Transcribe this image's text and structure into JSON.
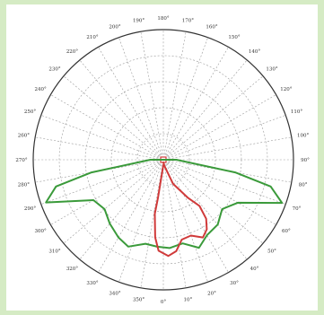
{
  "chart_data": {
    "type": "polar-line",
    "title": "",
    "angle_labels": [
      "0°",
      "10°",
      "20°",
      "30°",
      "40°",
      "50°",
      "60°",
      "70°",
      "80°",
      "90°",
      "100°",
      "110°",
      "120°",
      "130°",
      "140°",
      "150°",
      "160°",
      "170°",
      "180°",
      "190°",
      "200°",
      "210°",
      "220°",
      "230°",
      "240°",
      "250°",
      "260°",
      "270°",
      "280°",
      "290°",
      "300°",
      "310°",
      "320°",
      "330°",
      "340°",
      "350°"
    ],
    "angle_units": "degrees",
    "angle_zero": "bottom",
    "angle_direction": "counter-clockwise",
    "radial_range": [
      0,
      1
    ],
    "radial_rings": [
      0.2,
      0.4,
      0.6,
      0.8,
      1.0
    ],
    "grid": true,
    "series": [
      {
        "color": "#3a9a3a",
        "closed": true,
        "points": [
          {
            "angle": 90,
            "r": 0.1
          },
          {
            "angle": 80,
            "r": 0.56
          },
          {
            "angle": 76,
            "r": 0.85
          },
          {
            "angle": 70,
            "r": 0.97
          },
          {
            "angle": 60,
            "r": 0.66
          },
          {
            "angle": 50,
            "r": 0.59
          },
          {
            "angle": 40,
            "r": 0.65
          },
          {
            "angle": 30,
            "r": 0.67
          },
          {
            "angle": 22,
            "r": 0.73
          },
          {
            "angle": 13,
            "r": 0.66
          },
          {
            "angle": 4,
            "r": 0.68
          },
          {
            "angle": -4,
            "r": 0.67
          },
          {
            "angle": -12,
            "r": 0.66
          },
          {
            "angle": -22,
            "r": 0.72
          },
          {
            "angle": -30,
            "r": 0.69
          },
          {
            "angle": -40,
            "r": 0.64
          },
          {
            "angle": -50,
            "r": 0.59
          },
          {
            "angle": -60,
            "r": 0.62
          },
          {
            "angle": -70,
            "r": 0.96
          },
          {
            "angle": -76,
            "r": 0.85
          },
          {
            "angle": -80,
            "r": 0.56
          },
          {
            "angle": -90,
            "r": 0.1
          }
        ]
      },
      {
        "color": "#d03a3a",
        "closed": false,
        "points": [
          {
            "angle": 0,
            "r": 0.04
          },
          {
            "angle": -8,
            "r": 0.3
          },
          {
            "angle": -9,
            "r": 0.42
          },
          {
            "angle": -6,
            "r": 0.6
          },
          {
            "angle": -3,
            "r": 0.7
          },
          {
            "angle": 3,
            "r": 0.74
          },
          {
            "angle": 8,
            "r": 0.71
          },
          {
            "angle": 13,
            "r": 0.63
          },
          {
            "angle": 20,
            "r": 0.62
          },
          {
            "angle": 27,
            "r": 0.67
          },
          {
            "angle": 32,
            "r": 0.63
          },
          {
            "angle": 36,
            "r": 0.56
          },
          {
            "angle": 38,
            "r": 0.45
          },
          {
            "angle": 33,
            "r": 0.35
          },
          {
            "angle": 22,
            "r": 0.2
          },
          {
            "angle": 10,
            "r": 0.05
          },
          {
            "angle": 0,
            "r": 0.02
          }
        ]
      }
    ]
  }
}
